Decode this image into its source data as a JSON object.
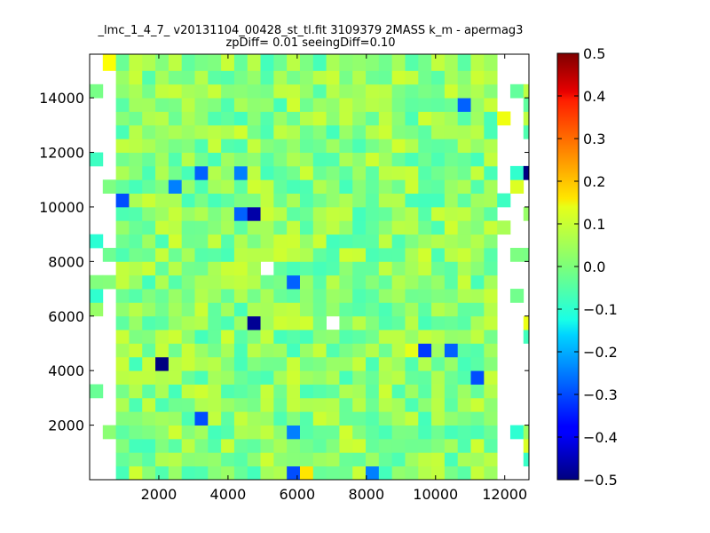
{
  "chart_data": {
    "type": "heatmap",
    "title": [
      "_lmc_1_4_7_ v20131104_00428_st_tl.fit 3109379 2MASS k_m - apermag3",
      "zpDiff= 0.01 seeingDiff=0.10"
    ],
    "xlabel": "",
    "ylabel": "",
    "xlim": [
      0,
      12700
    ],
    "ylim": [
      0,
      15600
    ],
    "xticks": [
      2000,
      4000,
      6000,
      8000,
      10000,
      12000
    ],
    "yticks": [
      2000,
      4000,
      6000,
      8000,
      10000,
      12000,
      14000
    ],
    "colorbar": {
      "colormap": "jet",
      "min": -0.5,
      "max": 0.5,
      "ticks": [
        0.5,
        0.4,
        0.3,
        0.2,
        0.1,
        0.0,
        -0.1,
        -0.2,
        -0.3,
        -0.4,
        -0.5
      ],
      "tick_labels": [
        "0.5",
        "0.4",
        "0.3",
        "0.2",
        "0.1",
        "0.0",
        "−0.1",
        "−0.2",
        "−0.3",
        "−0.4",
        "−0.5"
      ]
    },
    "grid": {
      "x_bin_edges": [
        0,
        380,
        760,
        1140,
        1520,
        1900,
        2280,
        2660,
        3040,
        3420,
        3800,
        4180,
        4560,
        4940,
        5320,
        5700,
        6080,
        6460,
        6840,
        7220,
        7600,
        7980,
        8360,
        8740,
        9120,
        9500,
        9880,
        10260,
        10640,
        11020,
        11400,
        11780,
        12160,
        12540,
        12700
      ],
      "y_bin_edges": [
        0,
        500,
        1000,
        1500,
        2000,
        2500,
        3000,
        3500,
        4000,
        4500,
        5000,
        5500,
        6000,
        6500,
        7000,
        7500,
        8000,
        8500,
        9000,
        9500,
        10000,
        10500,
        11000,
        11500,
        12000,
        12500,
        13000,
        13500,
        14000,
        14500,
        15000,
        15600
      ],
      "notable_cells": [
        {
          "x": 4750,
          "y": 9750,
          "value": -0.46
        },
        {
          "x": 4750,
          "y": 5750,
          "value": -0.48
        },
        {
          "x": 2050,
          "y": 4250,
          "value": -0.5
        },
        {
          "x": 12550,
          "y": 11250,
          "value": -0.5
        },
        {
          "x": 6250,
          "y": 250,
          "value": 0.15
        },
        {
          "x": 5950,
          "y": 250,
          "value": -0.3
        },
        {
          "x": 8050,
          "y": 250,
          "value": -0.25
        },
        {
          "x": 3150,
          "y": 2250,
          "value": -0.3
        },
        {
          "x": 5850,
          "y": 1750,
          "value": -0.25
        },
        {
          "x": 3150,
          "y": 11250,
          "value": -0.28
        },
        {
          "x": 4350,
          "y": 11250,
          "value": -0.25
        },
        {
          "x": 950,
          "y": 10250,
          "value": -0.3
        },
        {
          "x": 2350,
          "y": 10750,
          "value": -0.25
        },
        {
          "x": 4350,
          "y": 9750,
          "value": -0.28
        },
        {
          "x": 5850,
          "y": 7250,
          "value": -0.28
        },
        {
          "x": 9750,
          "y": 4750,
          "value": -0.32
        },
        {
          "x": 10550,
          "y": 4750,
          "value": -0.28
        },
        {
          "x": 11250,
          "y": 3750,
          "value": -0.3
        },
        {
          "x": 10950,
          "y": 13750,
          "value": -0.28
        },
        {
          "x": 4950,
          "y": 7750,
          "value": null
        },
        {
          "x": 7050,
          "y": 5750,
          "value": null
        },
        {
          "x": 9450,
          "y": 4750,
          "value": 0.1
        }
      ]
    }
  }
}
